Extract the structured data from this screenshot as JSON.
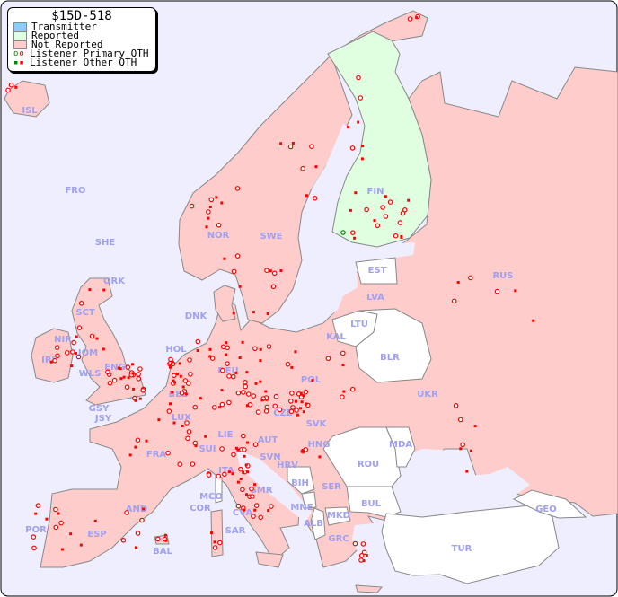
{
  "title": "$15D-518",
  "legend": {
    "items": [
      {
        "label": "Transmitter",
        "color": "#87cefa",
        "kind": "swatch"
      },
      {
        "label": "Reported",
        "color": "#e0ffe0",
        "kind": "swatch"
      },
      {
        "label": "Not Reported",
        "color": "#ffcccc",
        "kind": "swatch"
      },
      {
        "label": "Listener Primary QTH",
        "kind": "circle-marker"
      },
      {
        "label": "Listener Other QTH",
        "kind": "square-marker"
      }
    ]
  },
  "colors": {
    "sea": "#eeeeff",
    "not_reported": "#ffcccc",
    "reported": "#e0ffe0",
    "no_data": "#ffffff",
    "border": "#888888",
    "marker": "#ff0000",
    "marker_reported": "#008000",
    "label": "#a0a0f0"
  },
  "country_labels": [
    "ISL",
    "FRO",
    "SHE",
    "ORK",
    "NOR",
    "SWE",
    "FIN",
    "EST",
    "LVA",
    "LTU",
    "KAL",
    "BLR",
    "RUS",
    "DNK",
    "HOL",
    "DEU",
    "POL",
    "IRL",
    "NIR",
    "SCT",
    "IOM",
    "WLS",
    "ENG",
    "BEL",
    "GSY",
    "JSY",
    "LUX",
    "CZE",
    "SVK",
    "UKR",
    "FRA",
    "LIE",
    "AUT",
    "HNG",
    "MDA",
    "SUI",
    "SVN",
    "HRV",
    "ROU",
    "ITA",
    "SMR",
    "BIH",
    "SER",
    "MCO",
    "COR",
    "CVA",
    "MNE",
    "BUL",
    "GEO",
    "AND",
    "ALB",
    "MKD",
    "POR",
    "ESP",
    "SAR",
    "GRC",
    "BAL",
    "TUR"
  ],
  "reported_countries": [
    "FIN"
  ],
  "no_data_countries": [
    "EST",
    "LTU",
    "BLR",
    "ROU",
    "MDA",
    "BUL",
    "GEO",
    "TUR",
    "BIH",
    "MNE",
    "ALB",
    "MKD",
    "COR"
  ]
}
